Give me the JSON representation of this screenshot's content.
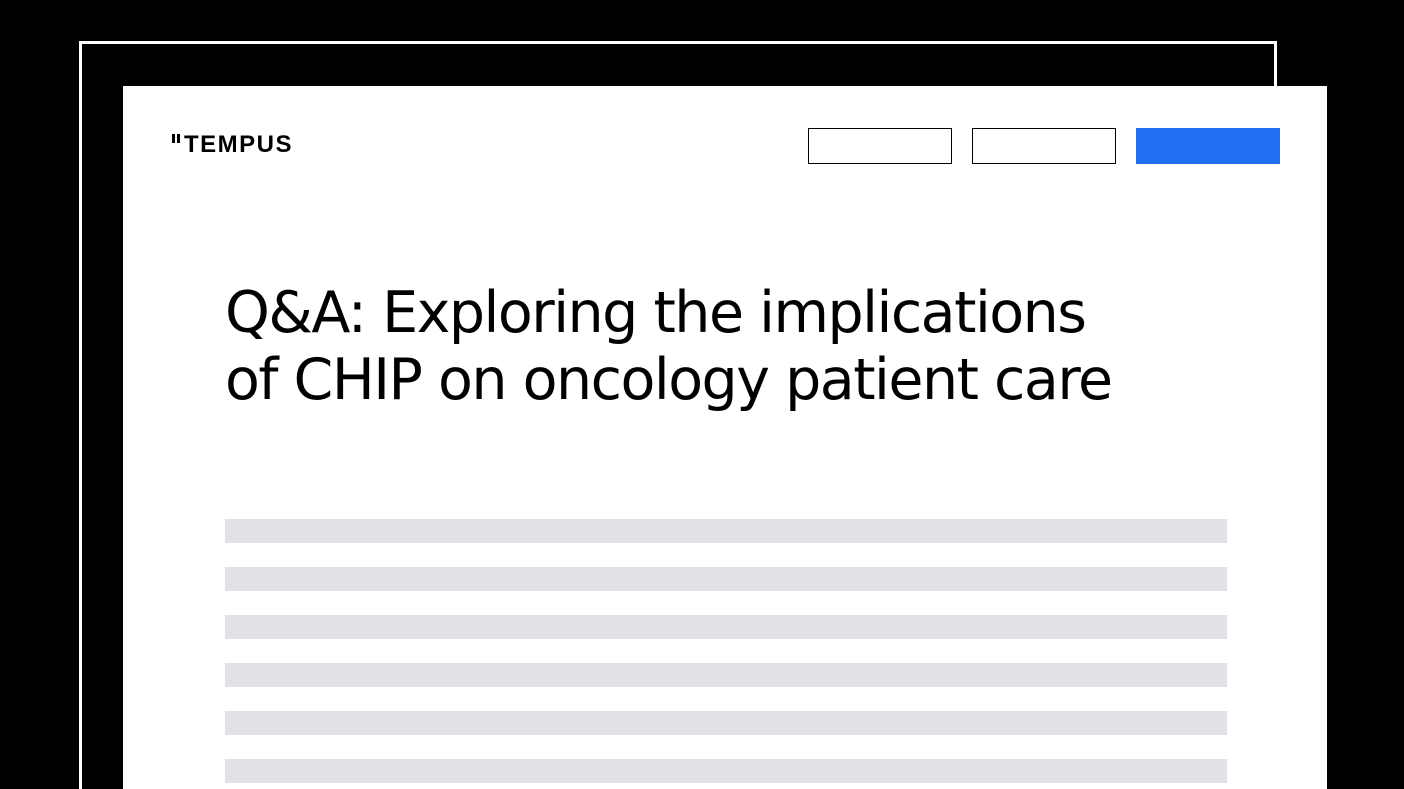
{
  "brand": {
    "name": "TEMPUS"
  },
  "header": {
    "nav_buttons": [
      {
        "label": "",
        "style": "outline"
      },
      {
        "label": "",
        "style": "outline"
      },
      {
        "label": "",
        "style": "filled",
        "color": "#1f6ff0"
      }
    ]
  },
  "article": {
    "headline_line1": "Q&A: Exploring the implications",
    "headline_line2": "of CHIP on oncology patient care",
    "body_placeholder_lines": 6
  },
  "colors": {
    "background": "#000000",
    "card": "#ffffff",
    "accent": "#1f6ff0",
    "placeholder": "#e1e2e6"
  }
}
